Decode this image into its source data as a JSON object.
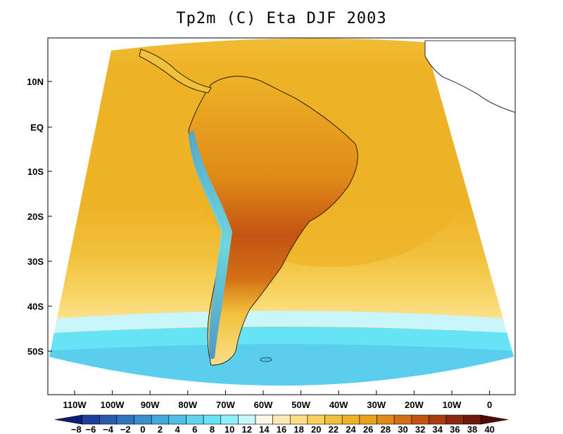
{
  "title": "Tp2m (C) Eta DJF 2003",
  "lat_ticks": [
    "10N",
    "EQ",
    "10S",
    "20S",
    "30S",
    "40S",
    "50S"
  ],
  "lon_ticks": [
    "110W",
    "100W",
    "90W",
    "80W",
    "70W",
    "60W",
    "50W",
    "40W",
    "30W",
    "20W",
    "10W",
    "0"
  ],
  "colorbar": {
    "labels": [
      "−8",
      "−6",
      "−4",
      "−2",
      "0",
      "2",
      "4",
      "6",
      "8",
      "10",
      "12",
      "14",
      "16",
      "18",
      "20",
      "22",
      "24",
      "26",
      "28",
      "30",
      "32",
      "34",
      "36",
      "38",
      "40"
    ],
    "colors": [
      "#0a1e78",
      "#1d3f99",
      "#2a5aab",
      "#2f74bf",
      "#3a90cf",
      "#45a8dc",
      "#52c0e6",
      "#5fd4ee",
      "#66e4f5",
      "#8ff0fa",
      "#c9f6fb",
      "#fbf6e6",
      "#fbeab1",
      "#fbdf86",
      "#f7d15c",
      "#f1c13d",
      "#eeb227",
      "#e9a21b",
      "#e08a17",
      "#d36f14",
      "#c45413",
      "#aa3c12",
      "#8c2810",
      "#6e170e",
      "#500a0a"
    ]
  }
}
